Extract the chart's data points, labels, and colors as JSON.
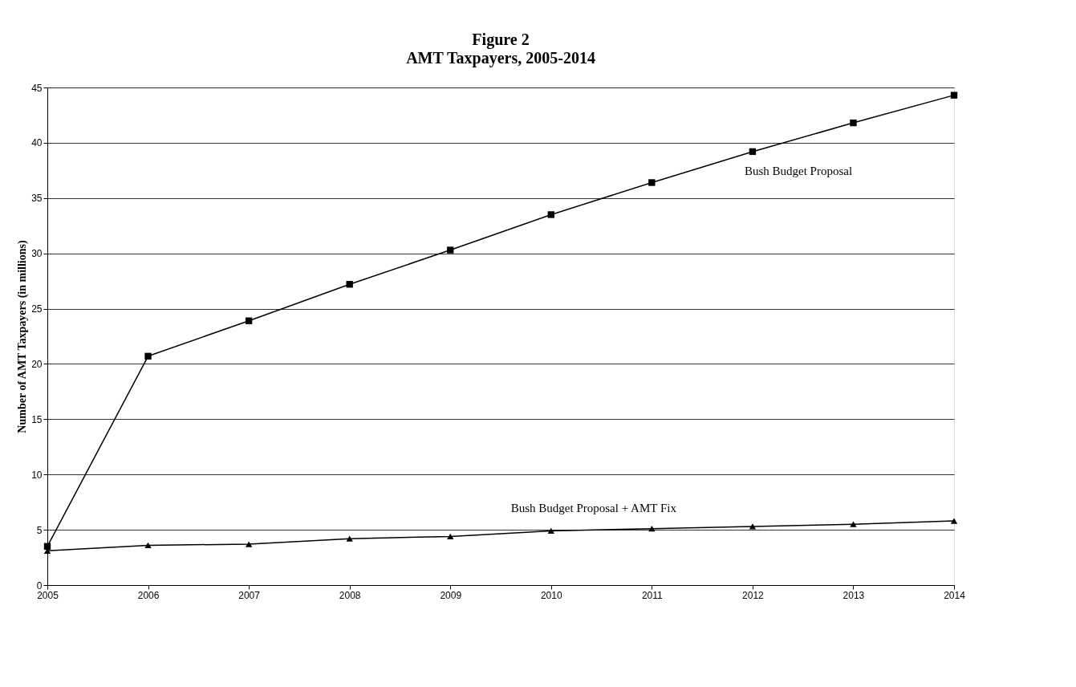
{
  "chart_data": {
    "type": "line",
    "title": "Figure 2",
    "subtitle": "AMT Taxpayers, 2005-2014",
    "ylabel": "Number of AMT Taxpayers (in millions)",
    "x": [
      2005,
      2006,
      2007,
      2008,
      2009,
      2010,
      2011,
      2012,
      2013,
      2014
    ],
    "series": [
      {
        "name": "Bush Budget Proposal",
        "color": "#000000",
        "marker": "square",
        "values": [
          3.5,
          20.7,
          23.9,
          27.2,
          30.3,
          33.5,
          36.4,
          39.2,
          41.8,
          44.3
        ]
      },
      {
        "name": "Bush Budget Proposal + AMT Fix",
        "color": "#000000",
        "marker": "triangle",
        "values": [
          3.1,
          3.6,
          3.7,
          4.2,
          4.4,
          4.9,
          5.1,
          5.3,
          5.5,
          5.8
        ]
      }
    ],
    "xlim": [
      2005,
      2014
    ],
    "xticks": [
      2005,
      2006,
      2007,
      2008,
      2009,
      2010,
      2011,
      2012,
      2013,
      2014
    ],
    "ylim": [
      0,
      45
    ],
    "yticks": [
      0,
      5,
      10,
      15,
      20,
      25,
      30,
      35,
      40,
      45
    ],
    "grid": "y",
    "line_style": "solid"
  }
}
